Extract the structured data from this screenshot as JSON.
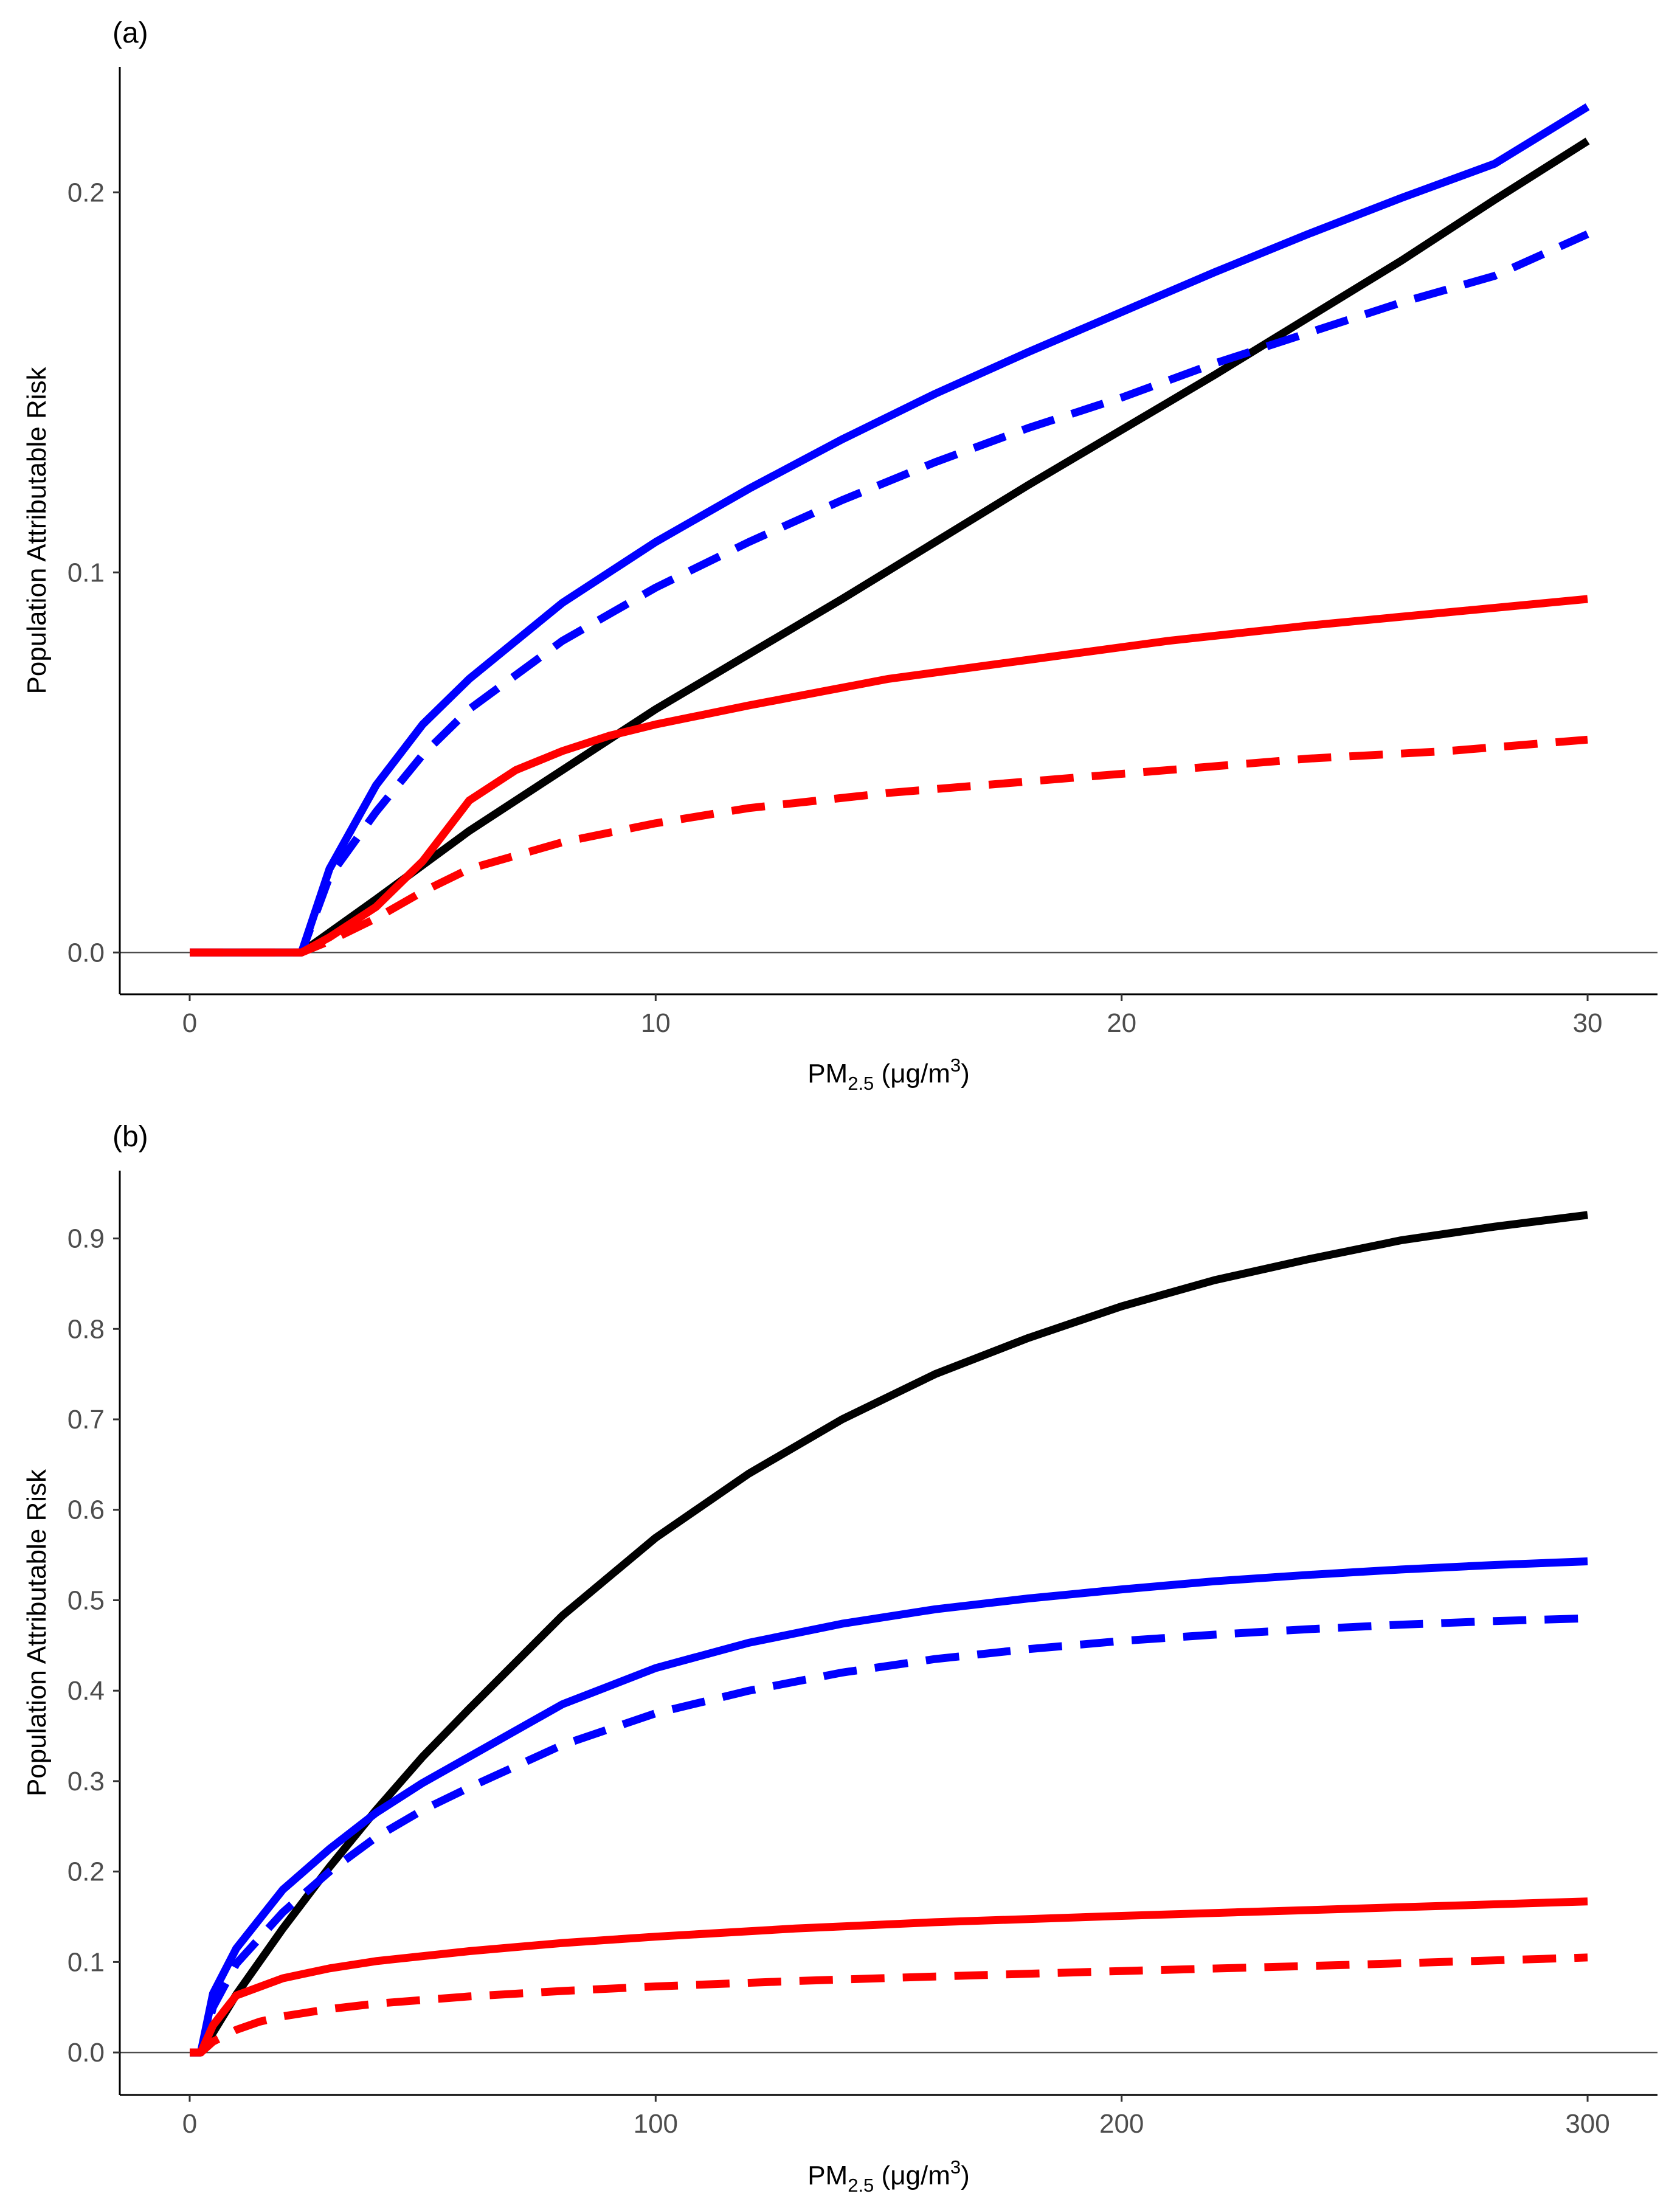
{
  "chart_data": [
    {
      "type": "line",
      "panel_label": "(a)",
      "xlabel": {
        "main": "PM",
        "sub": "2.5",
        "unit_prefix": " (μg/m",
        "unit_sup": "3",
        "unit_suffix": ")"
      },
      "ylabel": "Population Attributable Risk",
      "xlim": [
        -1.5,
        31.5
      ],
      "ylim": [
        -0.011,
        0.233
      ],
      "x_ticks": [
        0,
        10,
        20,
        30
      ],
      "x_tick_labels": [
        "0",
        "10",
        "20",
        "30"
      ],
      "y_ticks": [
        0.0,
        0.1,
        0.2
      ],
      "y_tick_labels": [
        "0.0",
        "0.1",
        "0.2"
      ],
      "reference_line_y": 0,
      "grid": false,
      "series": [
        {
          "name": "black-solid",
          "color": "#000000",
          "dash": "solid",
          "x": [
            0,
            2.4,
            4,
            6,
            8,
            10,
            12,
            14,
            16,
            18,
            20,
            22,
            24,
            26,
            28,
            30
          ],
          "y": [
            0,
            0,
            0.014,
            0.032,
            0.048,
            0.064,
            0.0785,
            0.093,
            0.108,
            0.123,
            0.1375,
            0.152,
            0.167,
            0.182,
            0.198,
            0.2135
          ]
        },
        {
          "name": "blue-solid",
          "color": "#0000ff",
          "dash": "solid",
          "x": [
            0,
            2.4,
            3,
            4,
            5,
            6,
            8,
            10,
            12,
            14,
            16,
            18,
            20,
            22,
            24,
            26,
            28,
            30
          ],
          "y": [
            0,
            0,
            0.022,
            0.044,
            0.06,
            0.072,
            0.092,
            0.108,
            0.122,
            0.135,
            0.147,
            0.158,
            0.1685,
            0.179,
            0.189,
            0.1985,
            0.2075,
            0.2225
          ]
        },
        {
          "name": "blue-dashed",
          "color": "#0000ff",
          "dash": "dashed",
          "x": [
            0,
            2.4,
            3,
            4,
            5,
            6,
            8,
            10,
            12,
            14,
            16,
            18,
            20,
            22,
            24,
            26,
            28,
            30
          ],
          "y": [
            0,
            0,
            0.02,
            0.037,
            0.052,
            0.064,
            0.082,
            0.096,
            0.108,
            0.119,
            0.129,
            0.138,
            0.146,
            0.155,
            0.163,
            0.171,
            0.178,
            0.189
          ]
        },
        {
          "name": "red-solid",
          "color": "#ff0000",
          "dash": "solid",
          "x": [
            0,
            2.4,
            3,
            4,
            5,
            6,
            7,
            8,
            9,
            10,
            12,
            15,
            18,
            21,
            24,
            27,
            30
          ],
          "y": [
            0,
            0,
            0.004,
            0.012,
            0.024,
            0.04,
            0.048,
            0.053,
            0.057,
            0.06,
            0.065,
            0.072,
            0.077,
            0.082,
            0.086,
            0.0895,
            0.093
          ]
        },
        {
          "name": "red-dashed",
          "color": "#ff0000",
          "dash": "dashed",
          "x": [
            0,
            2.4,
            3,
            4,
            5,
            6,
            8,
            10,
            12,
            15,
            18,
            21,
            24,
            27,
            30
          ],
          "y": [
            0,
            0,
            0.003,
            0.009,
            0.016,
            0.022,
            0.029,
            0.034,
            0.038,
            0.042,
            0.045,
            0.048,
            0.051,
            0.053,
            0.056
          ]
        }
      ]
    },
    {
      "type": "line",
      "panel_label": "(b)",
      "xlabel": {
        "main": "PM",
        "sub": "2.5",
        "unit_prefix": " (μg/m",
        "unit_sup": "3",
        "unit_suffix": ")"
      },
      "ylabel": "Population Attributable Risk",
      "xlim": [
        -15,
        315
      ],
      "ylim": [
        -0.047,
        0.975
      ],
      "x_ticks": [
        0,
        100,
        200,
        300
      ],
      "x_tick_labels": [
        "0",
        "100",
        "200",
        "300"
      ],
      "y_ticks": [
        0.0,
        0.1,
        0.2,
        0.3,
        0.4,
        0.5,
        0.6,
        0.7,
        0.8,
        0.9
      ],
      "y_tick_labels": [
        "0.0",
        "0.1",
        "0.2",
        "0.3",
        "0.4",
        "0.5",
        "0.6",
        "0.7",
        "0.8",
        "0.9"
      ],
      "reference_line_y": 0,
      "grid": false,
      "series": [
        {
          "name": "black-solid",
          "color": "#000000",
          "dash": "solid",
          "x": [
            0,
            2.4,
            10,
            20,
            30,
            40,
            50,
            60,
            80,
            100,
            120,
            140,
            160,
            180,
            200,
            220,
            240,
            260,
            280,
            300
          ],
          "y": [
            0,
            0,
            0.064,
            0.137,
            0.205,
            0.268,
            0.327,
            0.38,
            0.483,
            0.569,
            0.64,
            0.7,
            0.75,
            0.79,
            0.825,
            0.854,
            0.877,
            0.898,
            0.913,
            0.926
          ]
        },
        {
          "name": "blue-solid",
          "color": "#0000ff",
          "dash": "solid",
          "x": [
            0,
            2.4,
            5,
            10,
            20,
            30,
            40,
            50,
            60,
            80,
            100,
            120,
            140,
            160,
            180,
            200,
            220,
            240,
            260,
            280,
            300
          ],
          "y": [
            0,
            0,
            0.065,
            0.115,
            0.18,
            0.225,
            0.265,
            0.298,
            0.327,
            0.385,
            0.425,
            0.453,
            0.474,
            0.49,
            0.502,
            0.512,
            0.521,
            0.528,
            0.534,
            0.539,
            0.543
          ]
        },
        {
          "name": "blue-dashed",
          "color": "#0000ff",
          "dash": "dashed",
          "x": [
            0,
            2.4,
            5,
            10,
            20,
            30,
            40,
            50,
            60,
            80,
            100,
            120,
            140,
            160,
            180,
            200,
            220,
            240,
            260,
            280,
            300
          ],
          "y": [
            0,
            0,
            0.05,
            0.098,
            0.155,
            0.2,
            0.238,
            0.268,
            0.293,
            0.34,
            0.375,
            0.4,
            0.42,
            0.435,
            0.446,
            0.455,
            0.462,
            0.468,
            0.473,
            0.477,
            0.48
          ]
        },
        {
          "name": "red-solid",
          "color": "#ff0000",
          "dash": "solid",
          "x": [
            0,
            2.4,
            5,
            8,
            10,
            20,
            30,
            40,
            60,
            80,
            100,
            130,
            160,
            200,
            250,
            300
          ],
          "y": [
            0,
            0,
            0.03,
            0.05,
            0.063,
            0.082,
            0.093,
            0.101,
            0.112,
            0.121,
            0.128,
            0.137,
            0.144,
            0.151,
            0.159,
            0.167
          ]
        },
        {
          "name": "red-dashed",
          "color": "#ff0000",
          "dash": "dashed",
          "x": [
            0,
            2.4,
            5,
            10,
            15,
            20,
            30,
            40,
            60,
            80,
            100,
            130,
            160,
            200,
            250,
            300
          ],
          "y": [
            0,
            0,
            0.012,
            0.025,
            0.034,
            0.04,
            0.048,
            0.054,
            0.062,
            0.068,
            0.073,
            0.079,
            0.084,
            0.09,
            0.097,
            0.105
          ]
        }
      ]
    }
  ]
}
